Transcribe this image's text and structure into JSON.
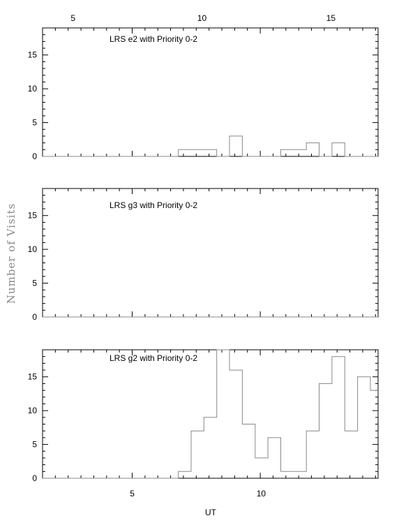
{
  "figure": {
    "top_axis_ticks": [
      "5",
      "10",
      "15"
    ],
    "bottom_axis_ticks": [
      "5",
      "10"
    ],
    "xlabel": "UT",
    "ylabel": "Number of Visits",
    "y_ticks": [
      "0",
      "5",
      "10",
      "15"
    ]
  },
  "colors": {
    "axis": "#000000",
    "step_line": "#888888"
  },
  "chart_data": [
    {
      "type": "area",
      "style": "step-histogram",
      "panel_label": "LRS e2 with Priority 0-2",
      "top_axis_x": [
        5,
        10,
        15
      ],
      "xlim": [
        1.5,
        14.6
      ],
      "ylim": [
        0,
        19
      ],
      "bin_edges": [
        1.5,
        6.8,
        7.8,
        8.3,
        8.8,
        9.3,
        9.8,
        10.3,
        10.8,
        11.3,
        11.8,
        12.3,
        12.8,
        13.3,
        13.8,
        14.6
      ],
      "values": [
        0,
        1,
        1,
        0,
        3,
        0,
        0,
        0,
        1,
        1,
        2,
        0,
        2,
        0,
        0
      ]
    },
    {
      "type": "area",
      "style": "step-histogram",
      "panel_label": "LRS g3 with Priority 0-2",
      "xlim": [
        1.5,
        14.6
      ],
      "ylim": [
        0,
        19
      ],
      "bin_edges": [
        1.5,
        14.6
      ],
      "values": [
        0
      ]
    },
    {
      "type": "area",
      "style": "step-histogram",
      "panel_label": "LRS g2 with Priority 0-2",
      "xlabel": "UT",
      "bottom_axis_x": [
        5,
        10
      ],
      "xlim": [
        1.5,
        14.6
      ],
      "ylim": [
        0,
        19
      ],
      "bin_edges": [
        1.5,
        6.8,
        7.3,
        7.8,
        8.3,
        8.8,
        9.3,
        9.8,
        10.3,
        10.8,
        11.3,
        11.8,
        12.3,
        12.8,
        13.3,
        13.8,
        14.3,
        14.6
      ],
      "values": [
        0,
        1,
        7,
        9,
        19,
        16,
        8,
        3,
        6,
        1,
        1,
        7,
        14,
        18,
        7,
        15,
        13
      ]
    }
  ]
}
